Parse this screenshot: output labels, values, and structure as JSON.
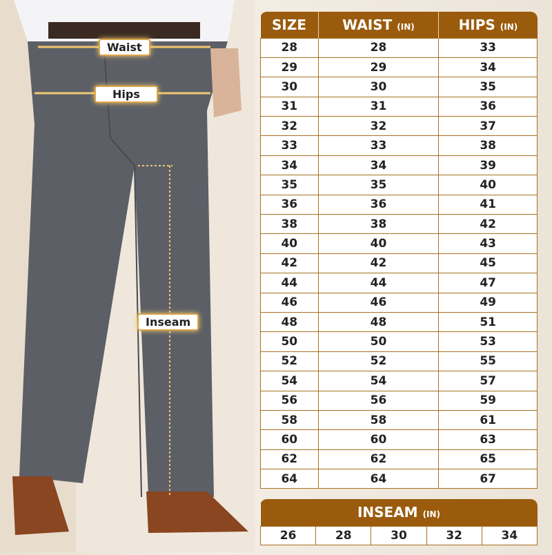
{
  "colors": {
    "accent": "#9a5b0c",
    "label_border": "#d9a54a"
  },
  "photo_labels": {
    "waist": "Waist",
    "hips": "Hips",
    "inseam": "Inseam"
  },
  "size_table": {
    "headers": [
      {
        "label": "SIZE",
        "unit": ""
      },
      {
        "label": "WAIST",
        "unit": "(IN)"
      },
      {
        "label": "HIPS",
        "unit": "(IN)"
      }
    ],
    "rows": [
      [
        "28",
        "28",
        "33"
      ],
      [
        "29",
        "29",
        "34"
      ],
      [
        "30",
        "30",
        "35"
      ],
      [
        "31",
        "31",
        "36"
      ],
      [
        "32",
        "32",
        "37"
      ],
      [
        "33",
        "33",
        "38"
      ],
      [
        "34",
        "34",
        "39"
      ],
      [
        "35",
        "35",
        "40"
      ],
      [
        "36",
        "36",
        "41"
      ],
      [
        "38",
        "38",
        "42"
      ],
      [
        "40",
        "40",
        "43"
      ],
      [
        "42",
        "42",
        "45"
      ],
      [
        "44",
        "44",
        "47"
      ],
      [
        "46",
        "46",
        "49"
      ],
      [
        "48",
        "48",
        "51"
      ],
      [
        "50",
        "50",
        "53"
      ],
      [
        "52",
        "52",
        "55"
      ],
      [
        "54",
        "54",
        "57"
      ],
      [
        "56",
        "56",
        "59"
      ],
      [
        "58",
        "58",
        "61"
      ],
      [
        "60",
        "60",
        "63"
      ],
      [
        "62",
        "62",
        "65"
      ],
      [
        "64",
        "64",
        "67"
      ]
    ]
  },
  "inseam_table": {
    "label": "INSEAM",
    "unit": "(IN)",
    "values": [
      "26",
      "28",
      "30",
      "32",
      "34"
    ]
  }
}
